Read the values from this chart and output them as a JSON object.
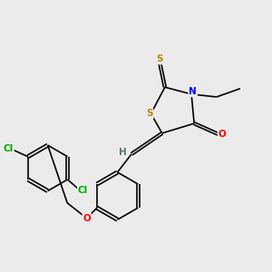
{
  "bg_color": "#ebebeb",
  "atom_colors": {
    "S": "#b8860b",
    "N": "#0000ff",
    "O": "#ff0000",
    "Cl": "#00aa00",
    "C": "#000000",
    "H": "#607070"
  },
  "bond_color": "#000000",
  "bond_width": 1.2
}
